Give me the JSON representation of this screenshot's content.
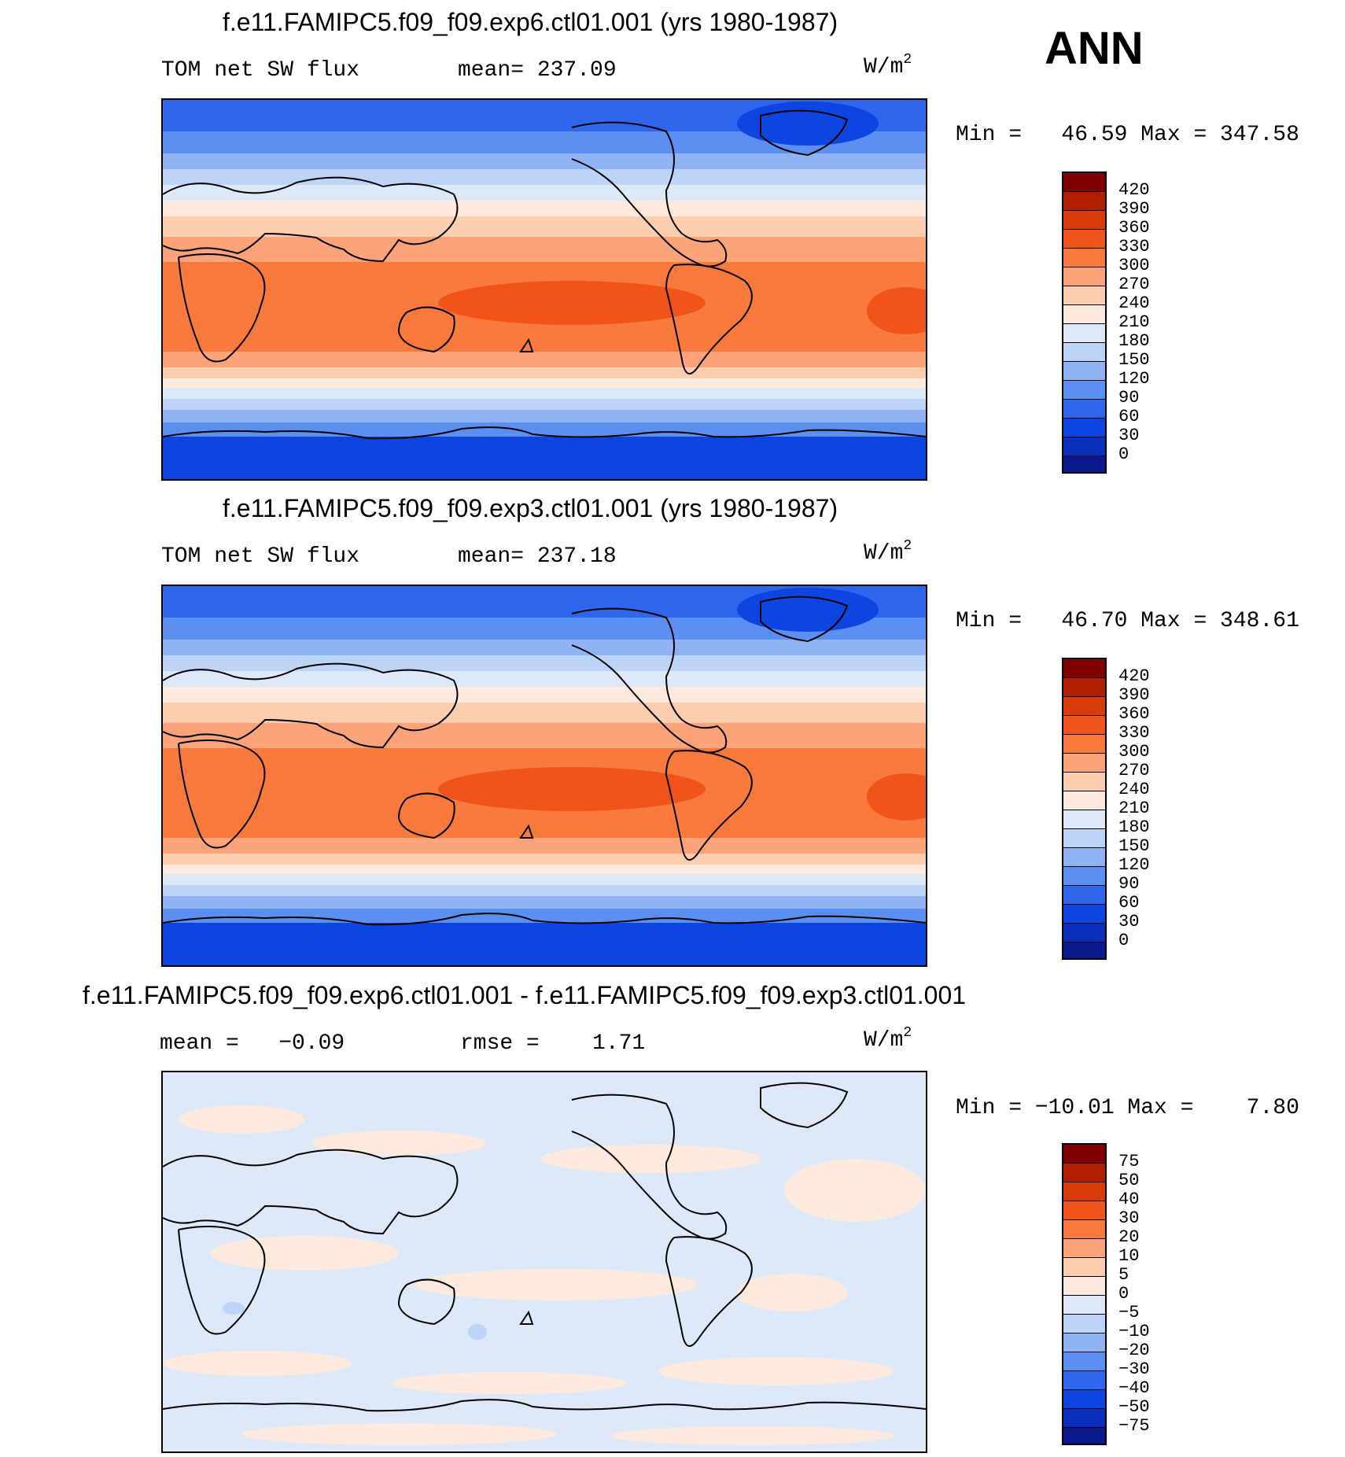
{
  "ann_label": "ANN",
  "units_base": "W/m",
  "units_exp": "2",
  "panels": [
    {
      "title": "f.e11.FAMIPC5.f09_f09.exp6.ctl01.001 (yrs 1980-1987)",
      "left_label": "TOM net SW flux",
      "mid_label": "mean= 237.09",
      "minmax": "Min =   46.59 Max = 347.58",
      "ticks": [
        "420",
        "390",
        "360",
        "330",
        "300",
        "270",
        "240",
        "210",
        "180",
        "150",
        "120",
        "90",
        "60",
        "30",
        "0"
      ]
    },
    {
      "title": "f.e11.FAMIPC5.f09_f09.exp3.ctl01.001 (yrs 1980-1987)",
      "left_label": "TOM net SW flux",
      "mid_label": "mean= 237.18",
      "minmax": "Min =   46.70 Max = 348.61",
      "ticks": [
        "420",
        "390",
        "360",
        "330",
        "300",
        "270",
        "240",
        "210",
        "180",
        "150",
        "120",
        "90",
        "60",
        "30",
        "0"
      ]
    },
    {
      "title": "f.e11.FAMIPC5.f09_f09.exp6.ctl01.001 - f.e11.FAMIPC5.f09_f09.exp3.ctl01.001",
      "left_label": "mean =   −0.09",
      "mid_label": "rmse =    1.71",
      "minmax": "Min = −10.01 Max =    7.80",
      "ticks": [
        "75",
        "50",
        "40",
        "30",
        "20",
        "10",
        "5",
        "0",
        "−5",
        "−10",
        "−20",
        "−30",
        "−40",
        "−50",
        "−75"
      ]
    }
  ],
  "colors": {
    "abs_scale": [
      "#7f0000",
      "#b01f00",
      "#d93a0a",
      "#f0541c",
      "#f97a3c",
      "#fca37a",
      "#fdcdb0",
      "#feeadc",
      "#dde9f8",
      "#bcd4f7",
      "#8fb3f5",
      "#5c8ff2",
      "#2e66ee",
      "#0d45e0",
      "#0b2fbd",
      "#0a1a8c"
    ],
    "diff_scale": [
      "#7f0000",
      "#b01f00",
      "#d93a0a",
      "#f0541c",
      "#f97a3c",
      "#fca37a",
      "#fdcdb0",
      "#feeadc",
      "#dde9f8",
      "#bcd4f7",
      "#8fb3f5",
      "#5c8ff2",
      "#2e66ee",
      "#0d45e0",
      "#0b2fbd",
      "#0a1a8c"
    ]
  }
}
